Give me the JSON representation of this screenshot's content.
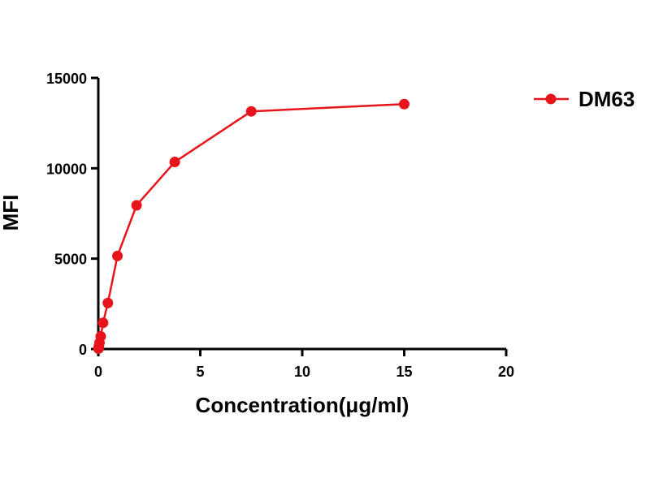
{
  "chart_data": {
    "type": "line",
    "title": "",
    "xlabel": "Concentration(μg/ml)",
    "ylabel": "MFI",
    "xlim": [
      0,
      20
    ],
    "ylim": [
      0,
      15000
    ],
    "x_ticks": [
      0,
      5,
      10,
      15,
      20
    ],
    "y_ticks": [
      0,
      5000,
      10000,
      15000
    ],
    "x_tick_labels": [
      "0",
      "5",
      "10",
      "15",
      "20"
    ],
    "y_tick_labels": [
      "0",
      "5000",
      "10000",
      "15000"
    ],
    "grid": false,
    "legend_position": "top-right",
    "series": [
      {
        "name": "DM63",
        "color": "#e8141b",
        "marker": "circle",
        "x": [
          0.0073,
          0.0146,
          0.0293,
          0.0586,
          0.117,
          0.234,
          0.469,
          0.938,
          1.875,
          3.75,
          7.5,
          15
        ],
        "y": [
          20,
          60,
          150,
          350,
          700,
          1450,
          2550,
          5150,
          7950,
          10350,
          13150,
          13550
        ]
      }
    ]
  }
}
